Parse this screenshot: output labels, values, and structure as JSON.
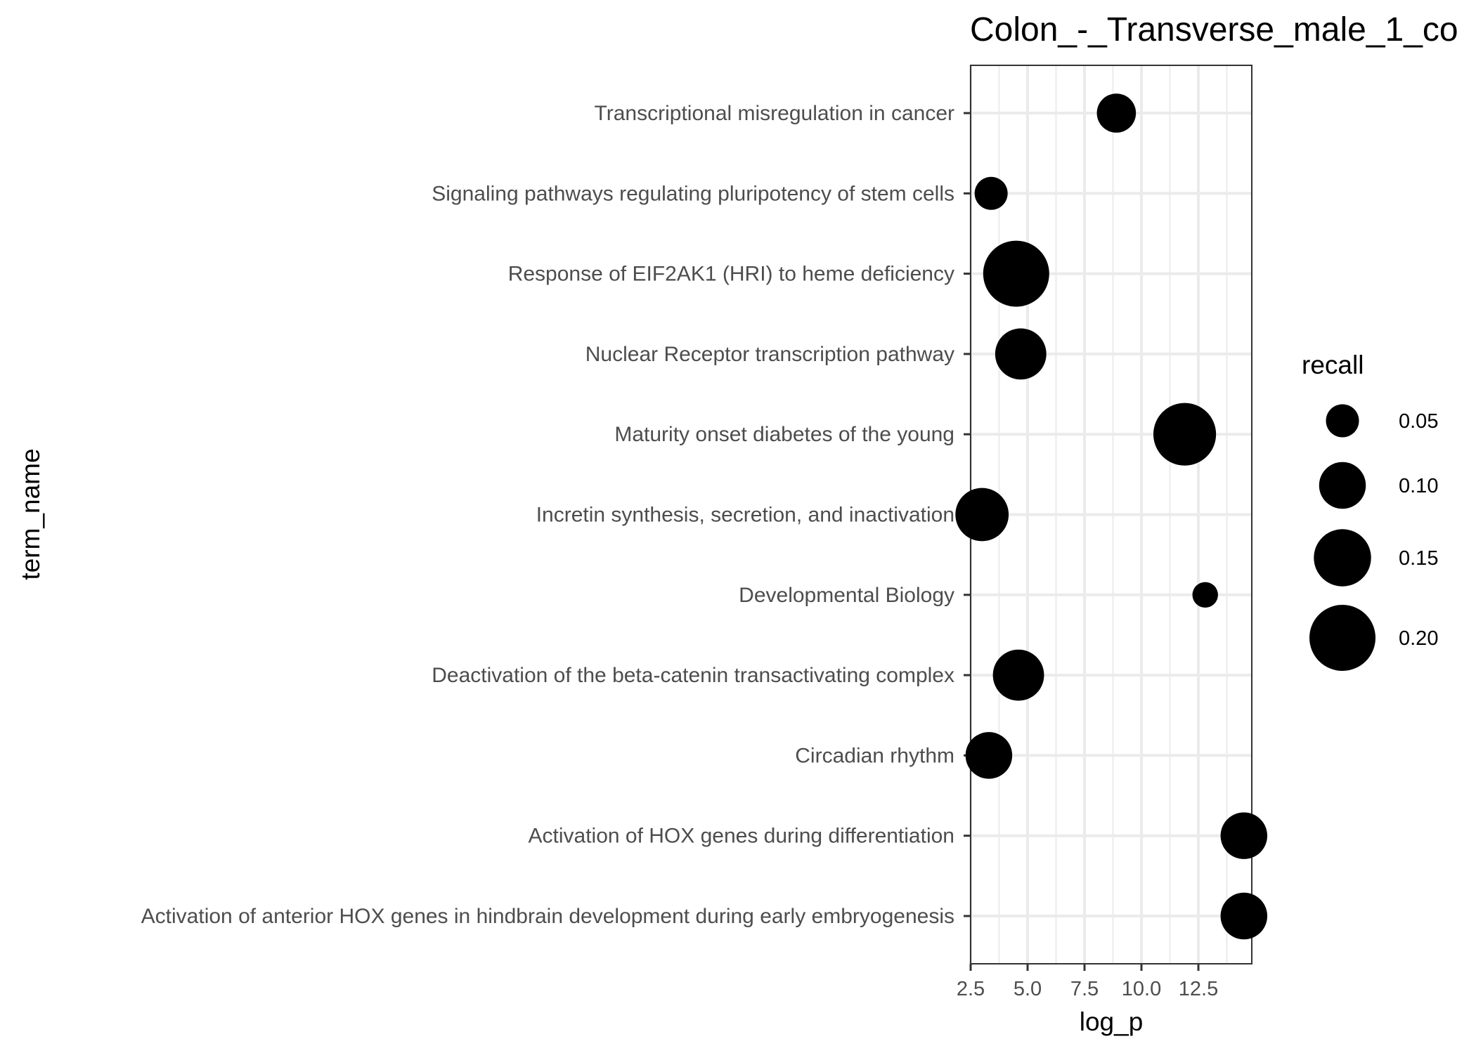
{
  "chart_data": {
    "type": "scatter",
    "title": "Colon_-_Transverse_male_1_co",
    "xlabel": "log_p",
    "ylabel": "term_name",
    "xlim": [
      2.5,
      15.0
    ],
    "x_ticks": [
      2.5,
      5.0,
      7.5,
      10.0,
      12.5
    ],
    "x_tick_labels": [
      "2.5",
      "5.0",
      "7.5",
      "10.0",
      "12.5"
    ],
    "grid": true,
    "legend": {
      "title": "recall",
      "position": "right",
      "values": [
        0.05,
        0.1,
        0.15,
        0.2
      ],
      "labels": [
        "0.05",
        "0.10",
        "0.15",
        "0.20"
      ]
    },
    "points": [
      {
        "term": "Transcriptional misregulation in cancer",
        "x": 8.9,
        "recall": 0.07
      },
      {
        "term": "Signaling pathways regulating pluripotency of stem cells",
        "x": 3.4,
        "recall": 0.05
      },
      {
        "term": "Response of EIF2AK1 (HRI) to heme deficiency",
        "x": 4.5,
        "recall": 0.2
      },
      {
        "term": "Nuclear Receptor transcription pathway",
        "x": 4.7,
        "recall": 0.12
      },
      {
        "term": "Maturity onset diabetes of the young",
        "x": 11.9,
        "recall": 0.18
      },
      {
        "term": "Incretin synthesis, secretion, and inactivation",
        "x": 3.0,
        "recall": 0.13
      },
      {
        "term": "Developmental Biology",
        "x": 12.8,
        "recall": 0.03
      },
      {
        "term": "Deactivation of the beta-catenin transactivating complex",
        "x": 4.6,
        "recall": 0.12
      },
      {
        "term": "Circadian rhythm",
        "x": 3.3,
        "recall": 0.1
      },
      {
        "term": "Activation of HOX genes during differentiation",
        "x": 14.5,
        "recall": 0.1
      },
      {
        "term": "Activation of anterior HOX genes in hindbrain development during early embryogenesis",
        "x": 14.5,
        "recall": 0.1
      }
    ],
    "colors": {
      "points": "#000000",
      "grid": "#ebebeb",
      "panel_border": "#333333",
      "tick_text": "#4d4d4d"
    }
  }
}
